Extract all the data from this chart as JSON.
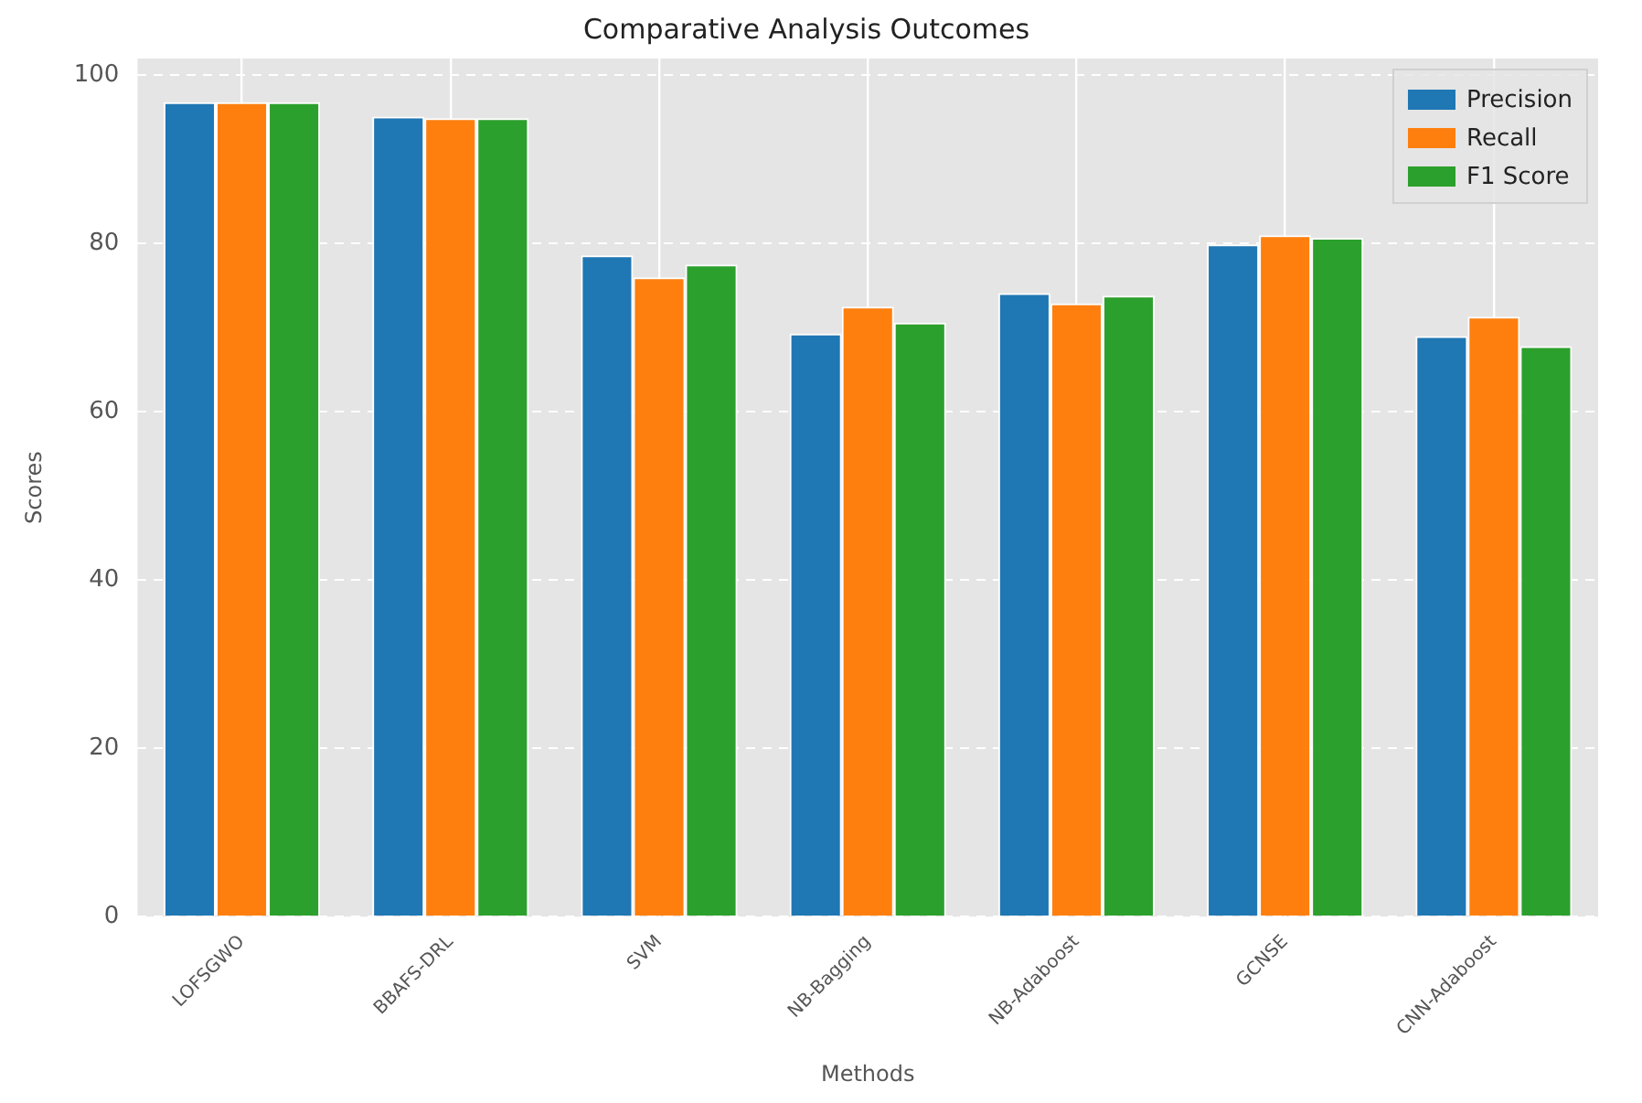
{
  "chart_data": {
    "type": "bar",
    "title": "Comparative Analysis Outcomes",
    "xlabel": "Methods",
    "ylabel": "Scores",
    "categories": [
      "LOFSGWO",
      "BBAFS-DRL",
      "SVM",
      "NB-Bagging",
      "NB-Adaboost",
      "GCNSE",
      "CNN-Adaboost"
    ],
    "series": [
      {
        "name": "Precision",
        "color": "#1f77b4",
        "values": [
          96.8,
          95.1,
          78.6,
          69.3,
          74.1,
          79.9,
          69.0
        ]
      },
      {
        "name": "Recall",
        "color": "#ff7f0e",
        "values": [
          96.8,
          94.9,
          76.0,
          72.5,
          72.9,
          81.0,
          71.3
        ]
      },
      {
        "name": "F1 Score",
        "color": "#2ca02c",
        "values": [
          96.8,
          94.9,
          77.5,
          70.6,
          73.8,
          80.7,
          67.8
        ]
      }
    ],
    "ylim": [
      0,
      102
    ],
    "yticks": [
      0,
      20,
      40,
      60,
      80,
      100
    ],
    "grid": true,
    "legend": "top right"
  }
}
